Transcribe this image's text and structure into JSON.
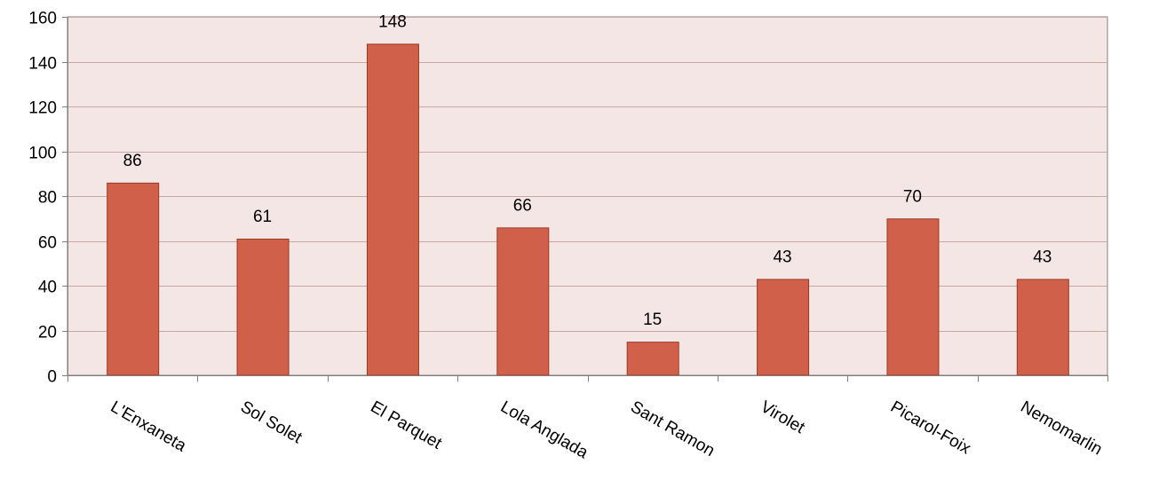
{
  "chart_data": {
    "type": "bar",
    "title": "",
    "xlabel": "",
    "ylabel": "",
    "categories": [
      "L'Enxaneta",
      "Sol Solet",
      "El Parquet",
      "Lola Anglada",
      "Sant Ramon",
      "Virolet",
      "Picarol-Foix",
      "Nemomarlin"
    ],
    "values": [
      86,
      61,
      148,
      66,
      15,
      43,
      70,
      43
    ],
    "data_labels": [
      "86",
      "61",
      "148",
      "66",
      "15",
      "43",
      "70",
      "43"
    ],
    "ylim": [
      0,
      160
    ],
    "yticks": [
      0,
      20,
      40,
      60,
      80,
      100,
      120,
      140,
      160
    ],
    "ytick_labels": [
      "0",
      "20",
      "40",
      "60",
      "80",
      "100",
      "120",
      "140",
      "160"
    ],
    "grid": true,
    "legend": "none",
    "colors": {
      "bar_fill": "#d0604a",
      "bar_stroke": "#9b3a26",
      "plot_background": "#f5e6e6",
      "gridline": "#c9a8a4",
      "axis": "#808080"
    }
  }
}
